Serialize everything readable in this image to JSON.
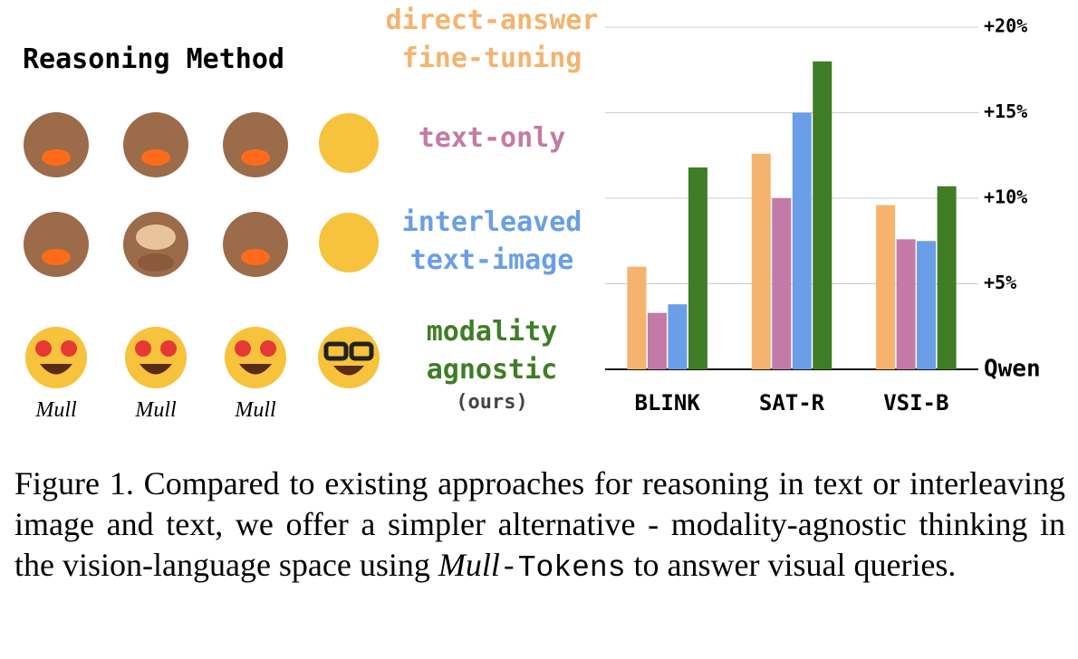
{
  "heading": "Reasoning Method",
  "method_note": "(ours)",
  "emoji_labels": [
    "Mull",
    "Mull",
    "Mull"
  ],
  "chart_data": {
    "type": "bar",
    "categories": [
      "BLINK",
      "SAT-R",
      "VSI-B"
    ],
    "series": [
      {
        "name": "direct-answer fine-tuning",
        "color": "#f5b36e",
        "values": [
          6.0,
          12.6,
          9.6
        ]
      },
      {
        "name": "text-only",
        "color": "#c47aa6",
        "values": [
          3.3,
          10.0,
          7.6
        ]
      },
      {
        "name": "interleaved text-image",
        "color": "#6a9ee8",
        "values": [
          3.8,
          15.0,
          7.5
        ]
      },
      {
        "name": "modality agnostic",
        "color": "#3f7d26",
        "values": [
          11.8,
          18.0,
          10.7
        ]
      }
    ],
    "ylim": [
      0,
      20
    ],
    "yticks": [
      {
        "value": 0,
        "label": "Qwen"
      },
      {
        "value": 5,
        "label": "+5%"
      },
      {
        "value": 10,
        "label": "+10%"
      },
      {
        "value": 15,
        "label": "+15%"
      },
      {
        "value": 20,
        "label": "+20%"
      }
    ],
    "grid": true
  },
  "caption": {
    "parts": [
      "Figure 1.  Compared to existing approaches for reasoning in text or interleaving image and text, we offer a simpler alternative - modality-agnostic thinking in the vision-language space using",
      "Mull",
      "-Tokens",
      "to answer visual queries."
    ]
  }
}
